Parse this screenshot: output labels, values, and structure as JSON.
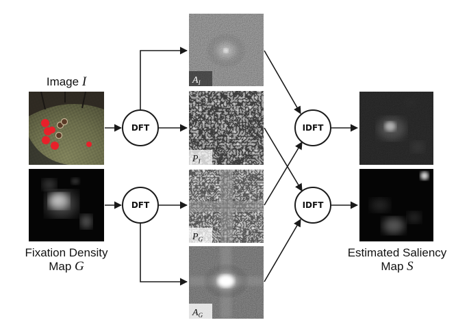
{
  "labels": {
    "image": {
      "text": "Image",
      "var": "I"
    },
    "fixation": {
      "line1": "Fixation Density",
      "line2": "Map",
      "var": "G"
    },
    "estimated": {
      "line1": "Estimated Saliency",
      "line2": "Map",
      "var": "S"
    }
  },
  "nodes": {
    "dft_top": "DFT",
    "dft_bottom": "DFT",
    "idft_top": "IDFT",
    "idft_bottom": "IDFT"
  },
  "spectra": {
    "amp_i": {
      "main": "A",
      "sub": "I"
    },
    "phase_i": {
      "main": "P",
      "sub": "I"
    },
    "phase_g": {
      "main": "P",
      "sub": "G"
    },
    "amp_g": {
      "main": "A",
      "sub": "G"
    }
  },
  "colors": {
    "arrow": "#1a1a1a",
    "node_stroke": "#1a1a1a",
    "red_objects": "#e8202a"
  }
}
